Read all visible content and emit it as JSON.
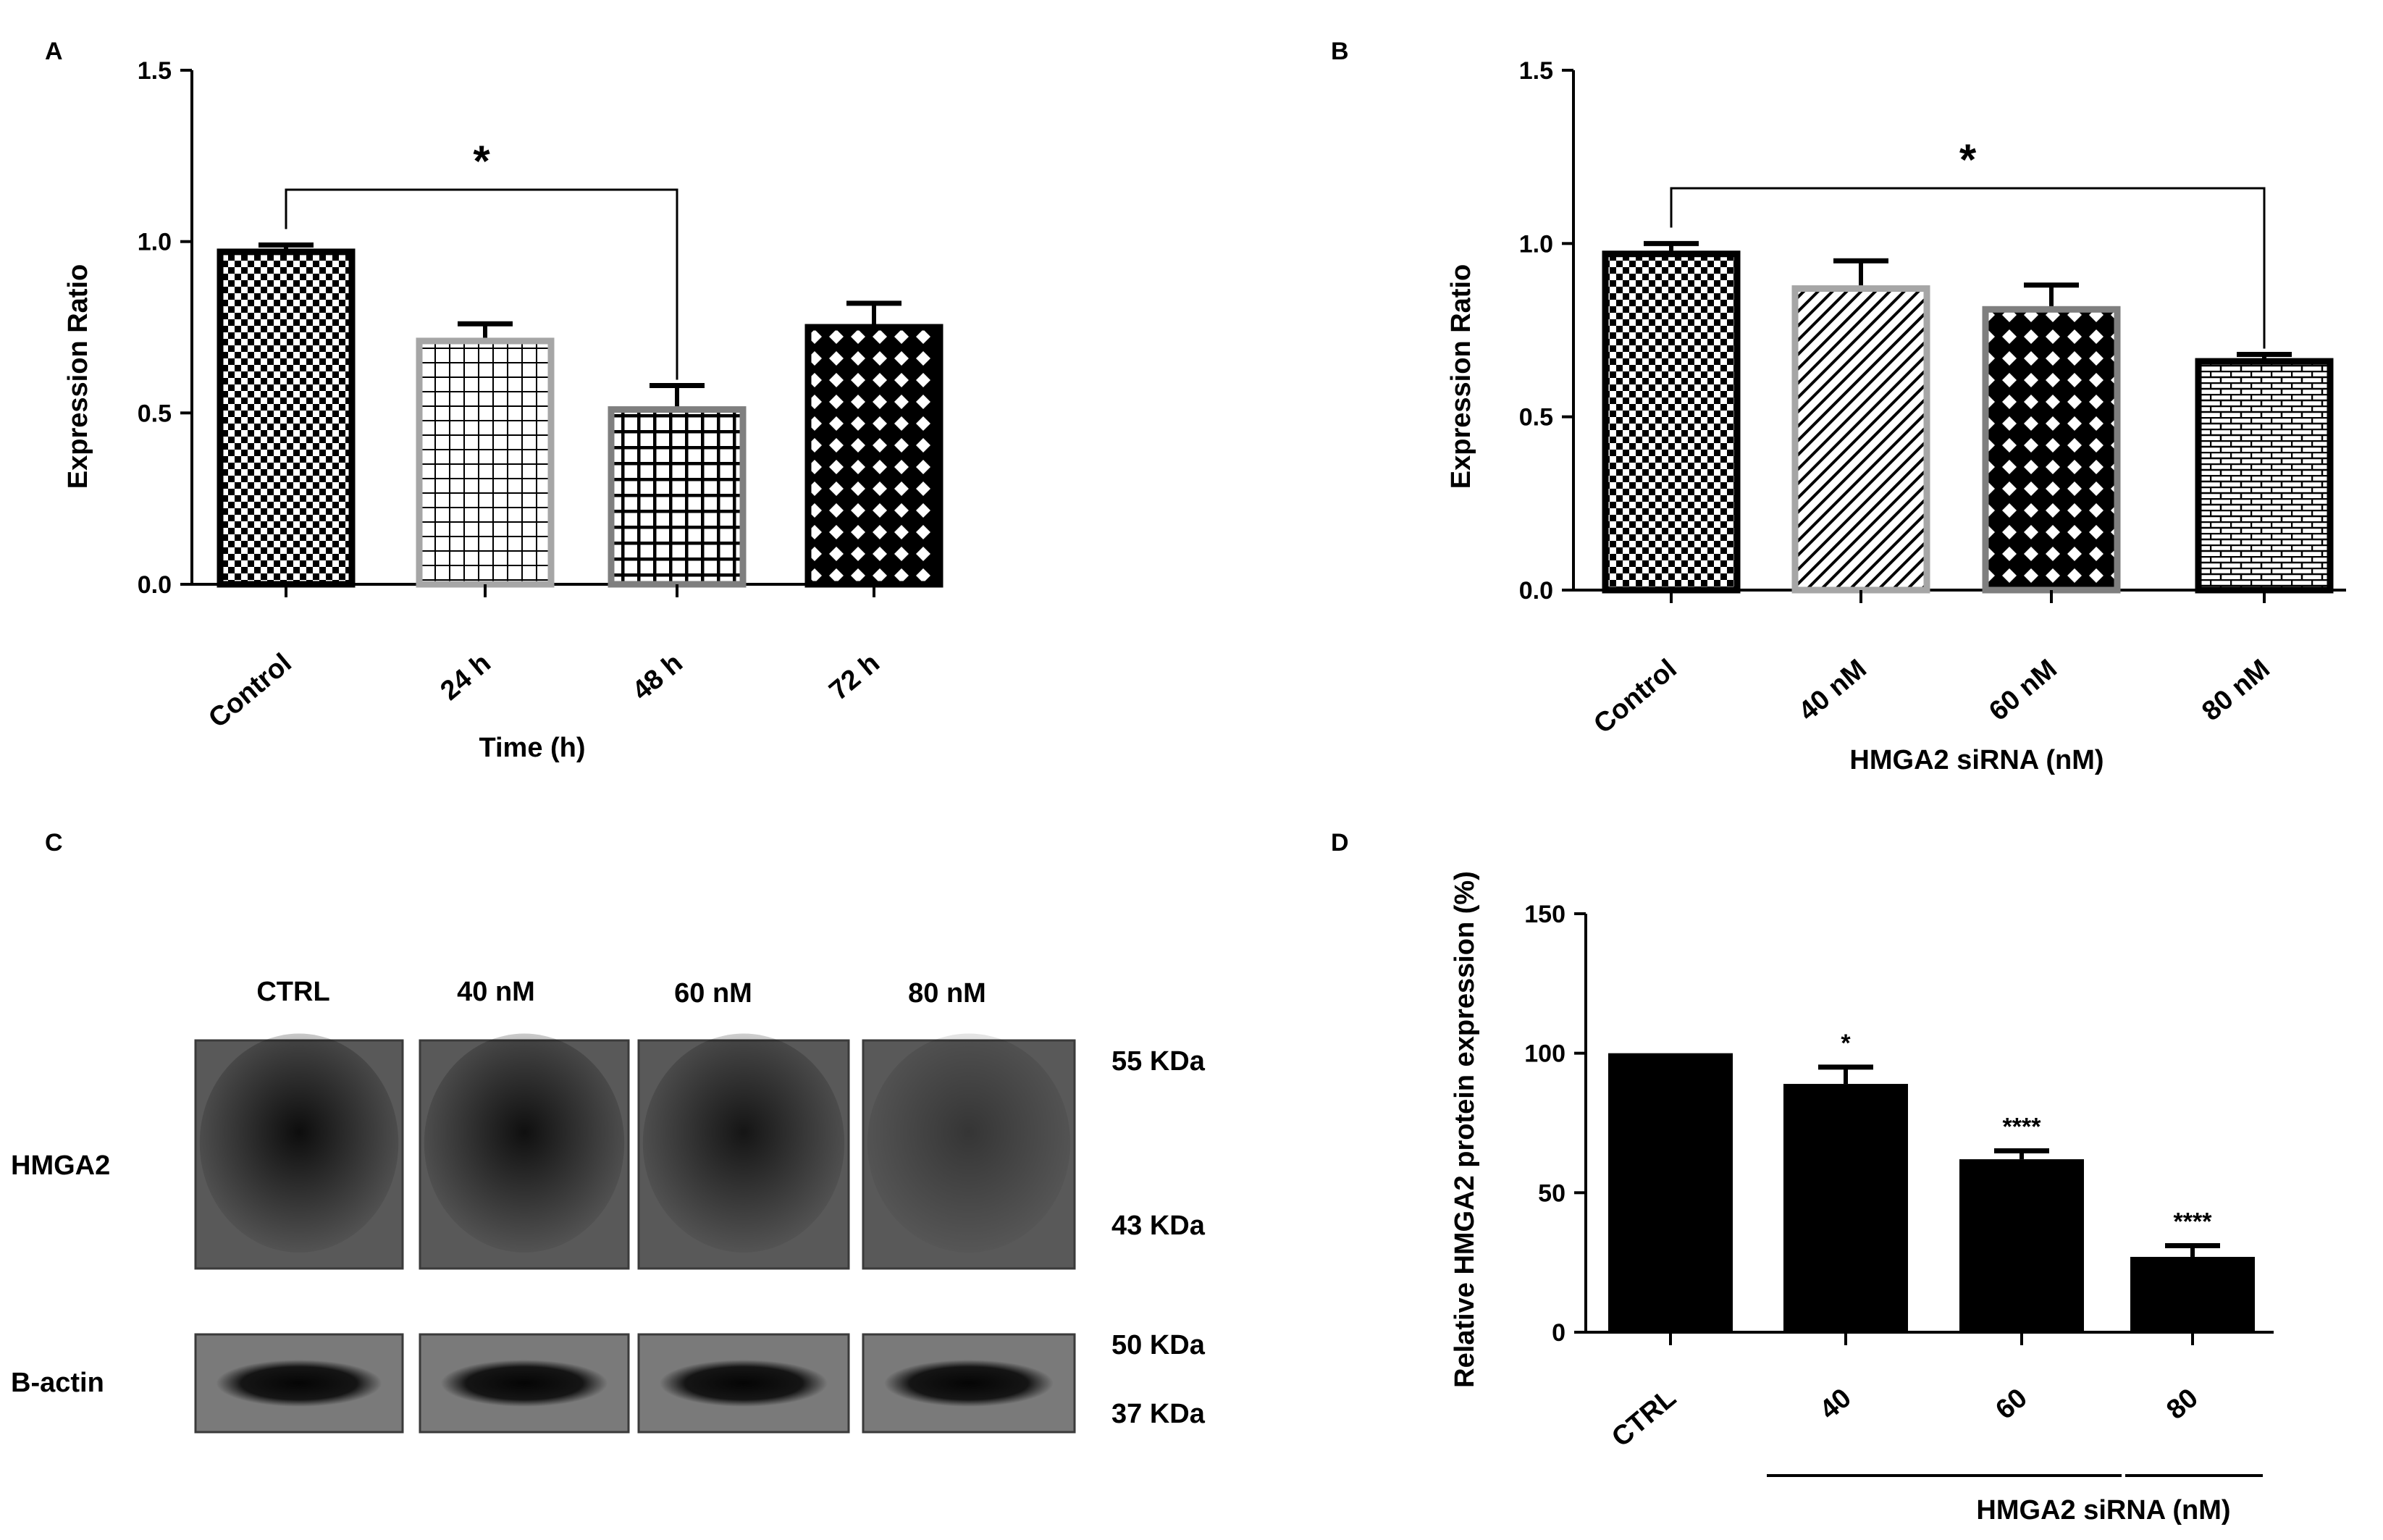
{
  "chart_data": [
    {
      "panel": "A",
      "type": "bar",
      "categories": [
        "Control",
        "24 h",
        "48 h",
        "72 h"
      ],
      "values": [
        0.97,
        0.71,
        0.51,
        0.75
      ],
      "errors": [
        0.02,
        0.05,
        0.07,
        0.07
      ],
      "xlabel": "Time (h)",
      "ylabel": "Expression Ratio",
      "ylim": [
        0,
        1.5
      ],
      "yticks": [
        "0.0",
        "0.5",
        "1.0",
        "1.5"
      ],
      "significance": {
        "from": "Control",
        "to": "48 h",
        "label": "*"
      },
      "patterns": [
        "checker",
        "grid-open",
        "grid-dense",
        "diamond"
      ],
      "bar_edges": [
        "#000000",
        "#a6a6a6",
        "#7f7f7f",
        "#000000"
      ]
    },
    {
      "panel": "B",
      "type": "bar",
      "categories": [
        "Control",
        "40 nM",
        "60 nM",
        "80 nM"
      ],
      "values": [
        0.97,
        0.87,
        0.81,
        0.66
      ],
      "errors": [
        0.03,
        0.08,
        0.07,
        0.02
      ],
      "xlabel": "HMGA2 siRNA (nM)",
      "ylabel": "Expression Ratio",
      "ylim": [
        0,
        1.5
      ],
      "yticks": [
        "0.0",
        "0.5",
        "1.0",
        "1.5"
      ],
      "significance": {
        "from": "Control",
        "to": "80 nM",
        "label": "*"
      },
      "patterns": [
        "checker",
        "hatch",
        "diamond",
        "brick"
      ],
      "bar_edges": [
        "#000000",
        "#a6a6a6",
        "#7f7f7f",
        "#000000"
      ]
    },
    {
      "panel": "D",
      "type": "bar",
      "categories": [
        "CTRL",
        "40",
        "60",
        "80"
      ],
      "values": [
        100,
        89,
        62,
        27
      ],
      "errors": [
        0,
        6,
        3,
        4
      ],
      "annotations": [
        "",
        "*",
        "****",
        "****"
      ],
      "xlabel": "HMGA2 siRNA (nM)",
      "ylabel": "Relative HMGA2 protein expression (%)",
      "ylim": [
        0,
        150
      ],
      "yticks": [
        "0",
        "50",
        "100",
        "150"
      ],
      "bar_color": "#000000"
    }
  ],
  "blot": {
    "panel": "C",
    "lanes": [
      "CTRL",
      "40 nM",
      "60 nM",
      "80 nM"
    ],
    "rows": [
      {
        "label": "HMGA2",
        "markers": [
          "55 KDa",
          "43 KDa"
        ],
        "lane_darkness": [
          0.95,
          0.92,
          0.85,
          0.45
        ]
      },
      {
        "label": "B-actin",
        "markers": [
          "50 KDa",
          "37 KDa"
        ],
        "lane_darkness": [
          1,
          1,
          1,
          1
        ]
      }
    ]
  }
}
